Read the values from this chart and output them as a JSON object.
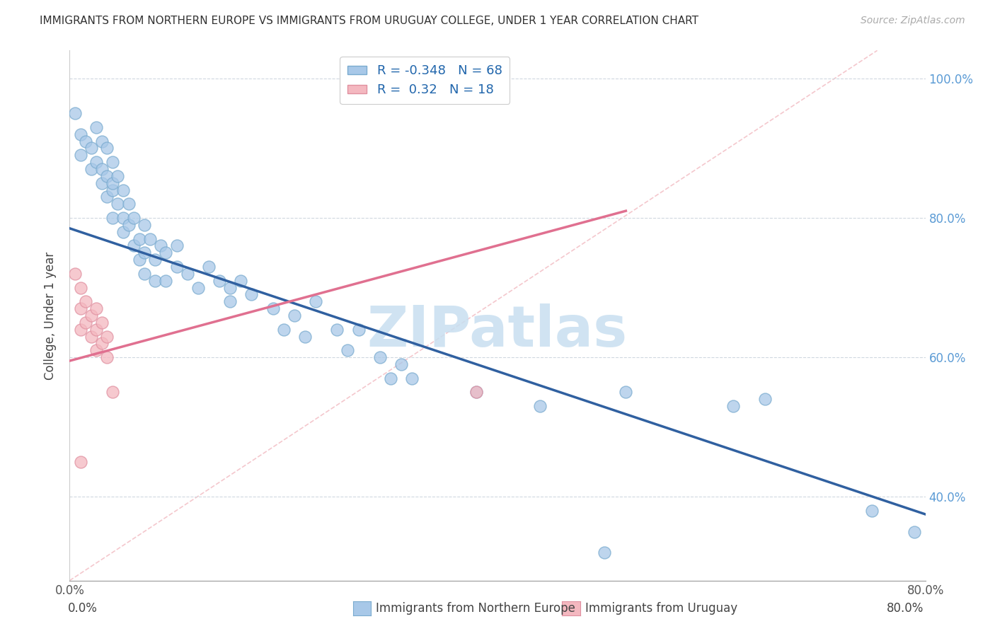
{
  "title": "IMMIGRANTS FROM NORTHERN EUROPE VS IMMIGRANTS FROM URUGUAY COLLEGE, UNDER 1 YEAR CORRELATION CHART",
  "source": "Source: ZipAtlas.com",
  "xlabel_legend1": "Immigrants from Northern Europe",
  "xlabel_legend2": "Immigrants from Uruguay",
  "ylabel": "College, Under 1 year",
  "blue_R": -0.348,
  "blue_N": 68,
  "pink_R": 0.32,
  "pink_N": 18,
  "blue_color": "#a8c8e8",
  "pink_color": "#f4b8c0",
  "blue_line_color": "#3060a0",
  "pink_line_color": "#e07090",
  "watermark_text": "ZIPatlas",
  "watermark_color": "#c8dff0",
  "xlim": [
    0.0,
    0.8
  ],
  "ylim": [
    0.28,
    1.04
  ],
  "x_ticks": [
    0.0,
    0.1,
    0.2,
    0.3,
    0.4,
    0.5,
    0.6,
    0.7,
    0.8
  ],
  "x_tick_labels": [
    "0.0%",
    "",
    "",
    "",
    "",
    "",
    "",
    "",
    "80.0%"
  ],
  "y_ticks": [
    0.4,
    0.6,
    0.8,
    1.0
  ],
  "y_tick_labels": [
    "40.0%",
    "60.0%",
    "80.0%",
    "100.0%"
  ],
  "blue_points_x": [
    0.005,
    0.01,
    0.01,
    0.015,
    0.02,
    0.02,
    0.025,
    0.025,
    0.03,
    0.03,
    0.03,
    0.035,
    0.035,
    0.035,
    0.04,
    0.04,
    0.04,
    0.04,
    0.045,
    0.045,
    0.05,
    0.05,
    0.05,
    0.055,
    0.055,
    0.06,
    0.06,
    0.065,
    0.065,
    0.07,
    0.07,
    0.07,
    0.075,
    0.08,
    0.08,
    0.085,
    0.09,
    0.09,
    0.1,
    0.1,
    0.11,
    0.12,
    0.13,
    0.14,
    0.15,
    0.15,
    0.16,
    0.17,
    0.19,
    0.2,
    0.21,
    0.22,
    0.23,
    0.25,
    0.26,
    0.27,
    0.29,
    0.3,
    0.31,
    0.32,
    0.38,
    0.44,
    0.52,
    0.62,
    0.65,
    0.75,
    0.79,
    0.5
  ],
  "blue_points_y": [
    0.95,
    0.92,
    0.89,
    0.91,
    0.9,
    0.87,
    0.93,
    0.88,
    0.91,
    0.87,
    0.85,
    0.9,
    0.86,
    0.83,
    0.88,
    0.84,
    0.8,
    0.85,
    0.86,
    0.82,
    0.84,
    0.8,
    0.78,
    0.82,
    0.79,
    0.8,
    0.76,
    0.77,
    0.74,
    0.79,
    0.75,
    0.72,
    0.77,
    0.74,
    0.71,
    0.76,
    0.75,
    0.71,
    0.76,
    0.73,
    0.72,
    0.7,
    0.73,
    0.71,
    0.7,
    0.68,
    0.71,
    0.69,
    0.67,
    0.64,
    0.66,
    0.63,
    0.68,
    0.64,
    0.61,
    0.64,
    0.6,
    0.57,
    0.59,
    0.57,
    0.55,
    0.53,
    0.55,
    0.53,
    0.54,
    0.38,
    0.35,
    0.32
  ],
  "pink_points_x": [
    0.005,
    0.01,
    0.01,
    0.01,
    0.015,
    0.015,
    0.02,
    0.02,
    0.025,
    0.025,
    0.025,
    0.03,
    0.03,
    0.035,
    0.035,
    0.04,
    0.38,
    0.01
  ],
  "pink_points_y": [
    0.72,
    0.7,
    0.67,
    0.64,
    0.68,
    0.65,
    0.66,
    0.63,
    0.67,
    0.64,
    0.61,
    0.65,
    0.62,
    0.63,
    0.6,
    0.55,
    0.55,
    0.45
  ],
  "blue_trend_x0": 0.0,
  "blue_trend_y0": 0.785,
  "blue_trend_x1": 0.8,
  "blue_trend_y1": 0.375,
  "pink_trend_x0": 0.0,
  "pink_trend_y0": 0.595,
  "pink_trend_x1": 0.52,
  "pink_trend_y1": 0.81,
  "ref_line_x0": 0.0,
  "ref_line_y0": 0.28,
  "ref_line_x1": 0.755,
  "ref_line_y1": 1.04
}
